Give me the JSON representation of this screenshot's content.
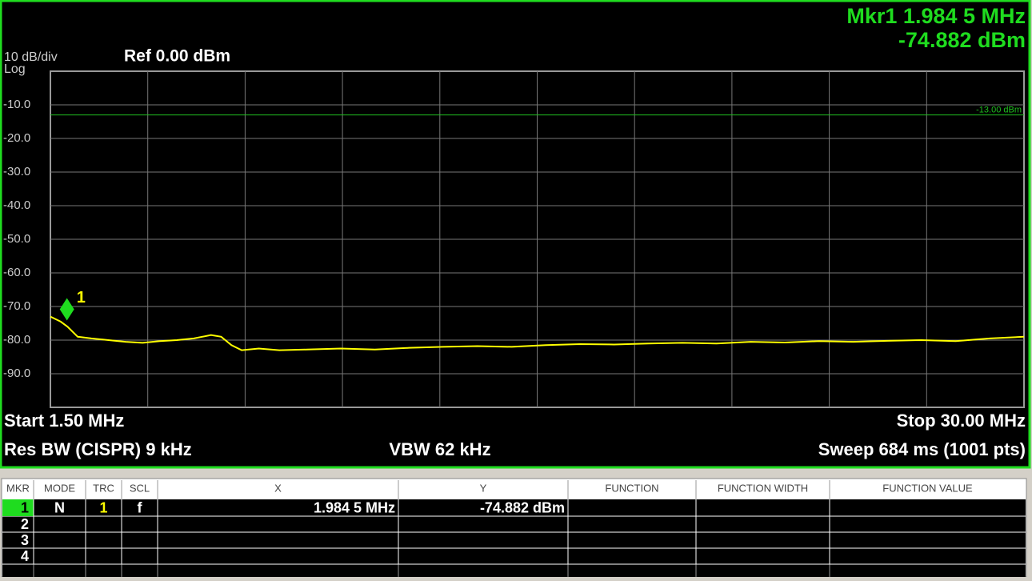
{
  "chart_data": {
    "type": "line",
    "scale_label": "10 dB/div",
    "scale_type": "Log",
    "reference": "Ref 0.00 dBm",
    "marker_readout": [
      "Mkr1 1.984 5 MHz",
      "-74.882 dBm"
    ],
    "start": "Start 1.50 MHz",
    "stop": "Stop 30.00 MHz",
    "rbw": "Res BW (CISPR) 9 kHz",
    "vbw": "VBW 62 kHz",
    "sweep": "Sweep  684 ms (1001 pts)",
    "xlim": [
      1.5,
      30
    ],
    "ylim": [
      -100,
      0
    ],
    "yticks": [
      {
        "value": -10,
        "label": "-10.0"
      },
      {
        "value": -20,
        "label": "-20.0"
      },
      {
        "value": -30,
        "label": "-30.0"
      },
      {
        "value": -40,
        "label": "-40.0"
      },
      {
        "value": -50,
        "label": "-50.0"
      },
      {
        "value": -60,
        "label": "-60.0"
      },
      {
        "value": -70,
        "label": "-70.0"
      },
      {
        "value": -80,
        "label": "-80.0"
      },
      {
        "value": -90,
        "label": "-90.0"
      }
    ],
    "grid": true,
    "limit": {
      "value": -13,
      "label": "-13.00 dBm",
      "color": "#1fbf1f"
    },
    "marker": {
      "label": "1",
      "x": 1.9845,
      "y": -74.882,
      "color": "#1fdc1f"
    },
    "x": [
      1.5,
      1.8,
      2.0,
      2.3,
      2.7,
      3.2,
      3.7,
      4.2,
      4.7,
      5.2,
      5.7,
      6.2,
      6.5,
      6.8,
      7.1,
      7.6,
      8.2,
      9,
      10,
      11,
      12,
      13,
      14,
      15,
      16,
      17,
      18,
      19,
      20,
      21,
      22,
      23,
      24,
      25,
      26,
      27,
      28,
      29,
      30
    ],
    "series": [
      {
        "name": "1",
        "color": "#ffff00",
        "values": [
          -73,
          -74.5,
          -76,
          -79,
          -79.5,
          -80,
          -80.5,
          -80.8,
          -80.3,
          -80,
          -79.5,
          -78.5,
          -79,
          -81.5,
          -83,
          -82.5,
          -83,
          -82.8,
          -82.5,
          -82.8,
          -82.3,
          -82,
          -81.8,
          -82,
          -81.5,
          -81.2,
          -81.3,
          -81,
          -80.8,
          -81,
          -80.5,
          -80.7,
          -80.3,
          -80.5,
          -80.2,
          -80,
          -80.3,
          -79.5,
          -79
        ]
      }
    ]
  },
  "table": {
    "header": [
      "MKR",
      "MODE",
      "TRC",
      "SCL",
      "X",
      "Y",
      "FUNCTION",
      "FUNCTION WIDTH",
      "FUNCTION VALUE"
    ],
    "rows": [
      [
        "1",
        "N",
        "1",
        "f",
        "1.984 5 MHz",
        "-74.882 dBm"
      ],
      [
        "2"
      ],
      [
        "3"
      ],
      [
        "4"
      ]
    ]
  }
}
